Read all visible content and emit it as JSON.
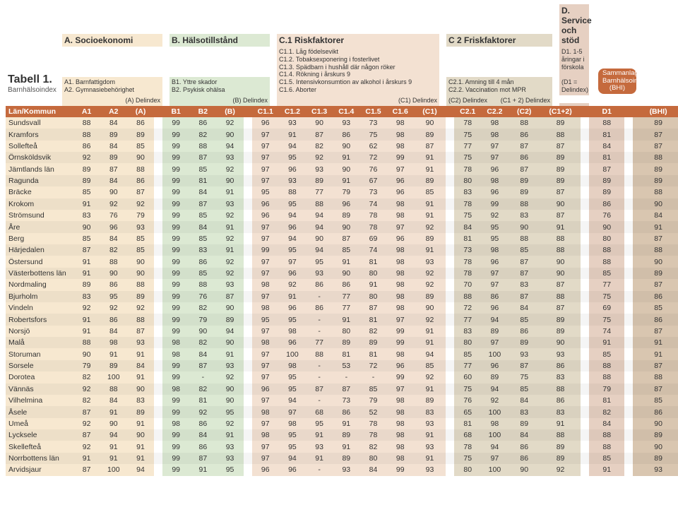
{
  "title": "Tabell 1.",
  "subtitle": "Barnhälsoindex",
  "sections": {
    "A": {
      "title": "A. Socioekonomi",
      "items": [
        "A1. Barnfattigdom",
        "A2. Gymnasiebehörighet"
      ],
      "del": "(A) Delindex"
    },
    "B": {
      "title": "B. Hälsotillstånd",
      "items": [
        "B1. Yttre skador",
        "B2. Psykisk ohälsa"
      ],
      "del": "(B) Delindex"
    },
    "C1": {
      "title": "C.1 Riskfaktorer",
      "items": [
        "C1.1. Låg födelsevikt",
        "C1.2. Tobaksexponering i fosterlivet",
        "C1.3. Spädbarn i hushåll där någon röker",
        "C1.4. Rökning i årskurs 9",
        "C1.5. Intensivkonsumtion av alkohol i årskurs 9",
        "C1.6. Aborter"
      ],
      "del": "(C1) Delindex"
    },
    "C2": {
      "title": "C 2 Friskfaktorer",
      "items": [
        "C2.1. Amning till 4 mån",
        "C2.2. Vaccination mot MPR"
      ],
      "del": "(C2) Delindex",
      "del2": "(C1 + 2) Delindex"
    },
    "D": {
      "title": "D. Service och stöd",
      "items": [
        "D1. 1-5 åringar i förskola",
        "(D1 = Delindex)"
      ]
    },
    "BHI": {
      "line1": "Sammanlagt",
      "line2": "Barnhälsoindex",
      "line3": "(BHI)"
    }
  },
  "cols": [
    "Län/Kommun",
    "A1",
    "A2",
    "(A)",
    "",
    "B1",
    "B2",
    "(B)",
    "",
    "C1.1",
    "C1.2",
    "C1.3",
    "C1.4",
    "C1.5",
    "C1.6",
    "(C1)",
    "",
    "C2.1",
    "C2.2",
    "(C2)",
    "(C1+2)",
    "",
    "D1",
    "",
    "(BHI)"
  ],
  "col_styles": [
    "a",
    "a",
    "a",
    "g",
    "b",
    "b",
    "b",
    "g",
    "c1",
    "c1",
    "c1",
    "c1",
    "c1",
    "c1",
    "c1",
    "g",
    "c2",
    "c2",
    "c2",
    "c2",
    "g",
    "d",
    "g",
    "bhi"
  ],
  "rows": [
    [
      "Sundsvall",
      88,
      84,
      86,
      99,
      86,
      92,
      96,
      93,
      90,
      93,
      73,
      98,
      90,
      78,
      98,
      88,
      89,
      88,
      89
    ],
    [
      "Kramfors",
      88,
      89,
      89,
      99,
      82,
      90,
      97,
      91,
      87,
      86,
      75,
      98,
      89,
      75,
      98,
      86,
      88,
      81,
      87
    ],
    [
      "Sollefteå",
      86,
      84,
      85,
      99,
      88,
      94,
      97,
      94,
      82,
      90,
      62,
      98,
      87,
      77,
      97,
      87,
      87,
      84,
      87
    ],
    [
      "Örnsköldsvik",
      92,
      89,
      90,
      99,
      87,
      93,
      97,
      95,
      92,
      91,
      72,
      99,
      91,
      75,
      97,
      86,
      89,
      81,
      88
    ],
    [
      "Jämtlands län",
      89,
      87,
      88,
      99,
      85,
      92,
      97,
      96,
      93,
      90,
      76,
      97,
      91,
      78,
      96,
      87,
      89,
      87,
      89
    ],
    [
      "Ragunda",
      89,
      84,
      86,
      99,
      81,
      90,
      97,
      93,
      89,
      91,
      67,
      96,
      89,
      80,
      98,
      89,
      89,
      89,
      89
    ],
    [
      "Bräcke",
      85,
      90,
      87,
      99,
      84,
      91,
      95,
      88,
      77,
      79,
      73,
      96,
      85,
      83,
      96,
      89,
      87,
      89,
      88
    ],
    [
      "Krokom",
      91,
      92,
      92,
      99,
      87,
      93,
      96,
      95,
      88,
      96,
      74,
      98,
      91,
      78,
      99,
      88,
      90,
      86,
      90
    ],
    [
      "Strömsund",
      83,
      76,
      79,
      99,
      85,
      92,
      96,
      94,
      94,
      89,
      78,
      98,
      91,
      75,
      92,
      83,
      87,
      76,
      84
    ],
    [
      "Åre",
      90,
      96,
      93,
      99,
      84,
      91,
      97,
      96,
      94,
      90,
      78,
      97,
      92,
      84,
      95,
      90,
      91,
      90,
      91
    ],
    [
      "Berg",
      85,
      84,
      85,
      99,
      85,
      92,
      97,
      94,
      90,
      87,
      69,
      96,
      89,
      81,
      95,
      88,
      88,
      80,
      87
    ],
    [
      "Härjedalen",
      87,
      82,
      85,
      99,
      83,
      91,
      99,
      95,
      94,
      85,
      74,
      98,
      91,
      73,
      98,
      85,
      88,
      88,
      88
    ],
    [
      "Östersund",
      91,
      88,
      90,
      99,
      86,
      92,
      97,
      97,
      95,
      91,
      81,
      98,
      93,
      78,
      96,
      87,
      90,
      88,
      90
    ],
    [
      "Västerbottens län",
      91,
      90,
      90,
      99,
      85,
      92,
      97,
      96,
      93,
      90,
      80,
      98,
      92,
      78,
      97,
      87,
      90,
      85,
      89
    ],
    [
      "Nordmaling",
      89,
      86,
      88,
      99,
      88,
      93,
      98,
      92,
      86,
      86,
      91,
      98,
      92,
      70,
      97,
      83,
      87,
      77,
      87
    ],
    [
      "Bjurholm",
      83,
      95,
      89,
      99,
      76,
      87,
      97,
      91,
      "-",
      77,
      80,
      98,
      89,
      88,
      86,
      87,
      88,
      75,
      86
    ],
    [
      "Vindeln",
      92,
      92,
      92,
      99,
      82,
      90,
      98,
      96,
      86,
      77,
      87,
      98,
      90,
      72,
      96,
      84,
      87,
      69,
      85
    ],
    [
      "Robertsfors",
      91,
      86,
      88,
      99,
      79,
      89,
      95,
      95,
      "-",
      91,
      81,
      97,
      92,
      77,
      94,
      85,
      89,
      75,
      86
    ],
    [
      "Norsjö",
      91,
      84,
      87,
      99,
      90,
      94,
      97,
      98,
      "-",
      80,
      82,
      99,
      91,
      83,
      89,
      86,
      89,
      74,
      87
    ],
    [
      "Malå",
      88,
      98,
      93,
      98,
      82,
      90,
      98,
      96,
      77,
      89,
      89,
      99,
      91,
      80,
      97,
      89,
      90,
      91,
      91
    ],
    [
      "Storuman",
      90,
      91,
      91,
      98,
      84,
      91,
      97,
      100,
      88,
      81,
      81,
      98,
      94,
      85,
      100,
      93,
      93,
      85,
      91
    ],
    [
      "Sorsele",
      79,
      89,
      84,
      99,
      87,
      93,
      97,
      98,
      "-",
      53,
      72,
      96,
      85,
      77,
      96,
      87,
      86,
      88,
      87
    ],
    [
      "Dorotea",
      82,
      100,
      91,
      99,
      "-",
      92,
      97,
      95,
      "-",
      "-",
      "-",
      99,
      92,
      60,
      89,
      75,
      83,
      88,
      88
    ],
    [
      "Vännäs",
      92,
      88,
      90,
      98,
      82,
      90,
      96,
      95,
      87,
      87,
      85,
      97,
      91,
      75,
      94,
      85,
      88,
      79,
      87
    ],
    [
      "Vilhelmina",
      82,
      84,
      83,
      99,
      81,
      90,
      97,
      94,
      "-",
      73,
      79,
      98,
      89,
      76,
      92,
      84,
      86,
      81,
      85
    ],
    [
      "Åsele",
      87,
      91,
      89,
      99,
      92,
      95,
      98,
      97,
      68,
      86,
      52,
      98,
      83,
      65,
      100,
      83,
      83,
      82,
      86
    ],
    [
      "Umeå",
      92,
      90,
      91,
      98,
      86,
      92,
      97,
      98,
      95,
      91,
      78,
      98,
      93,
      81,
      98,
      89,
      91,
      84,
      90
    ],
    [
      "Lycksele",
      87,
      94,
      90,
      99,
      84,
      91,
      98,
      95,
      91,
      89,
      78,
      98,
      91,
      68,
      100,
      84,
      88,
      88,
      89
    ],
    [
      "Skellefteå",
      92,
      91,
      91,
      99,
      86,
      93,
      97,
      95,
      93,
      91,
      82,
      98,
      93,
      78,
      94,
      86,
      89,
      88,
      90
    ],
    [
      "Norrbottens län",
      91,
      91,
      91,
      99,
      87,
      93,
      97,
      94,
      91,
      89,
      80,
      98,
      91,
      75,
      97,
      86,
      89,
      85,
      89
    ],
    [
      "Arvidsjaur",
      87,
      100,
      94,
      99,
      91,
      95,
      96,
      96,
      "-",
      93,
      84,
      99,
      93,
      80,
      100,
      90,
      92,
      91,
      93
    ]
  ]
}
